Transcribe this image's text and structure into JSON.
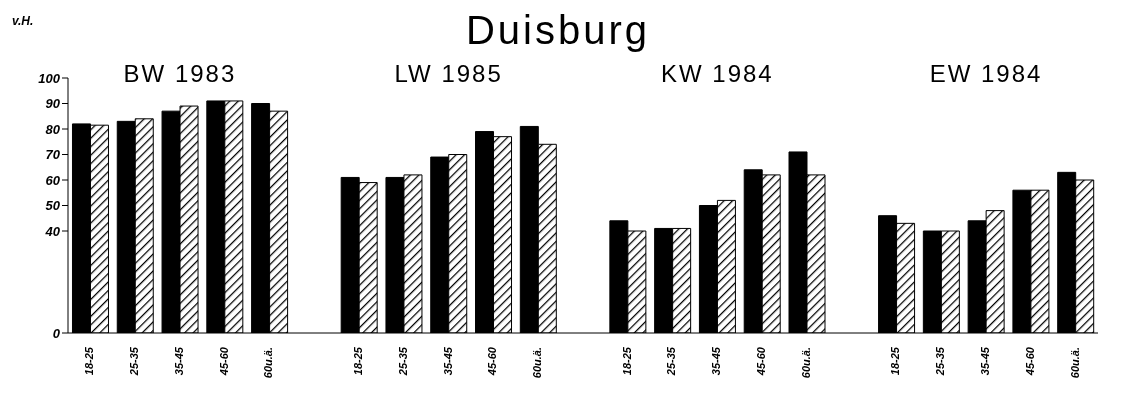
{
  "chart_data": {
    "type": "bar",
    "title": "Duisburg",
    "ylabel": "v.H.",
    "annotations": [
      "BW 1983",
      "LW 1985",
      "KW 1984",
      "EW 1984"
    ],
    "categories": [
      "18-25",
      "25-35",
      "35-45",
      "45-60",
      "60u.ä.",
      null,
      "18-25",
      "25-35",
      "35-45",
      "45-60",
      "60u.ä.",
      null,
      "18-25",
      "25-35",
      "35-45",
      "45-60",
      "60u.ä.",
      null,
      "18-25",
      "25-35",
      "35-45",
      "45-60",
      "60u.ä."
    ],
    "series": [
      {
        "color": "#000000",
        "values": [
          82,
          83,
          87,
          91,
          90,
          null,
          61,
          61,
          69,
          79,
          81,
          null,
          44,
          41,
          50,
          64,
          71,
          null,
          46,
          40,
          44,
          56,
          63
        ]
      },
      {
        "color": "#000000",
        "values": [
          81.5,
          84,
          89,
          91,
          87,
          null,
          59,
          62,
          70,
          77,
          74,
          null,
          40,
          41,
          52,
          62,
          62,
          null,
          43,
          40,
          48,
          56,
          60
        ]
      }
    ],
    "ylim": [
      0,
      100
    ],
    "yticks": [
      0,
      40,
      50,
      60,
      70,
      80,
      90,
      100
    ],
    "grid": false,
    "legend": false
  }
}
